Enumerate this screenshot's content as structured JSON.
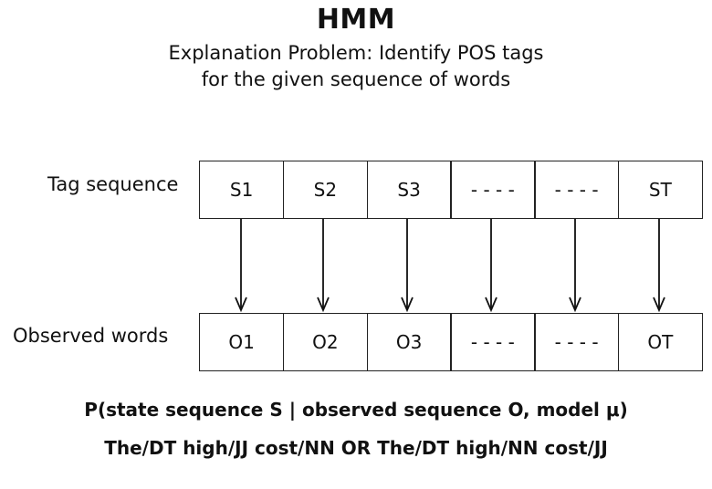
{
  "title": "HMM",
  "subtitle_line1": "Explanation Problem: Identify POS tags",
  "subtitle_line2": "for the given sequence of words",
  "tag_row": {
    "label": "Tag sequence",
    "cells": [
      "S1",
      "S2",
      "S3",
      "- - - -",
      "- - - -",
      "ST"
    ]
  },
  "observed_row": {
    "label": "Observed words",
    "cells": [
      "O1",
      "O2",
      "O3",
      "- - - -",
      "- - - -",
      "OT"
    ]
  },
  "formula_line1": "P(state sequence S | observed sequence O, model μ)",
  "formula_line2": "The/DT high/JJ cost/NN OR The/DT high/NN cost/JJ"
}
